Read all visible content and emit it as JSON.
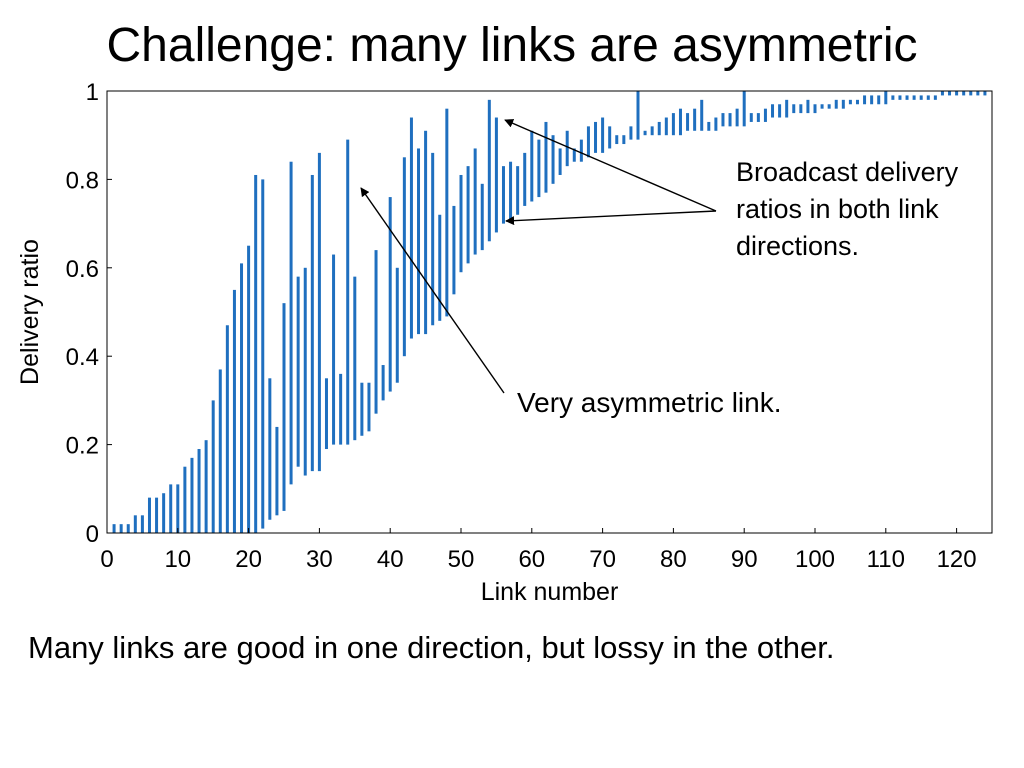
{
  "slide": {
    "title": "Challenge: many links are asymmetric",
    "caption": "Many links are good in one direction, but lossy in the other."
  },
  "chart_data": {
    "type": "bar",
    "subtype": "range-bar",
    "xlabel": "Link number",
    "ylabel": "Delivery ratio",
    "xlim": [
      0,
      125
    ],
    "ylim": [
      0,
      1
    ],
    "xticks": [
      0,
      10,
      20,
      30,
      40,
      50,
      60,
      70,
      80,
      90,
      100,
      110,
      120
    ],
    "yticks": [
      0,
      0.2,
      0.4,
      0.6,
      0.8,
      1
    ],
    "ytick_labels": [
      "0",
      "0.2",
      "0.4",
      "0.6",
      "0.8",
      "1"
    ],
    "grid": false,
    "bar_color": "#1f6fbf",
    "links": [
      1,
      2,
      3,
      4,
      5,
      6,
      7,
      8,
      9,
      10,
      11,
      12,
      13,
      14,
      15,
      16,
      17,
      18,
      19,
      20,
      21,
      22,
      23,
      24,
      25,
      26,
      27,
      28,
      29,
      30,
      31,
      32,
      33,
      34,
      35,
      36,
      37,
      38,
      39,
      40,
      41,
      42,
      43,
      44,
      45,
      46,
      47,
      48,
      49,
      50,
      51,
      52,
      53,
      54,
      55,
      56,
      57,
      58,
      59,
      60,
      61,
      62,
      63,
      64,
      65,
      66,
      67,
      68,
      69,
      70,
      71,
      72,
      73,
      74,
      75,
      76,
      77,
      78,
      79,
      80,
      81,
      82,
      83,
      84,
      85,
      86,
      87,
      88,
      89,
      90,
      91,
      92,
      93,
      94,
      95,
      96,
      97,
      98,
      99,
      100,
      101,
      102,
      103,
      104,
      105,
      106,
      107,
      108,
      109,
      110,
      111,
      112,
      113,
      114,
      115,
      116,
      117,
      118,
      119,
      120,
      121,
      122,
      123,
      124
    ],
    "low": [
      0,
      0,
      0,
      0,
      0,
      0,
      0,
      0,
      0,
      0,
      0,
      0,
      0,
      0,
      0,
      0,
      0,
      0,
      0,
      0,
      0,
      0.01,
      0.03,
      0.04,
      0.05,
      0.11,
      0.15,
      0.13,
      0.14,
      0.14,
      0.19,
      0.2,
      0.2,
      0.2,
      0.21,
      0.22,
      0.23,
      0.27,
      0.3,
      0.32,
      0.34,
      0.4,
      0.44,
      0.45,
      0.45,
      0.47,
      0.48,
      0.49,
      0.54,
      0.59,
      0.61,
      0.63,
      0.64,
      0.66,
      0.68,
      0.7,
      0.71,
      0.72,
      0.74,
      0.75,
      0.76,
      0.77,
      0.79,
      0.81,
      0.83,
      0.84,
      0.84,
      0.85,
      0.86,
      0.86,
      0.87,
      0.88,
      0.88,
      0.89,
      0.89,
      0.9,
      0.9,
      0.9,
      0.9,
      0.9,
      0.9,
      0.91,
      0.91,
      0.91,
      0.91,
      0.91,
      0.92,
      0.92,
      0.92,
      0.92,
      0.93,
      0.93,
      0.93,
      0.94,
      0.94,
      0.94,
      0.95,
      0.95,
      0.95,
      0.95,
      0.96,
      0.96,
      0.96,
      0.96,
      0.97,
      0.97,
      0.97,
      0.97,
      0.97,
      0.97,
      0.98,
      0.98,
      0.98,
      0.98,
      0.98,
      0.98,
      0.98,
      0.99,
      0.99,
      0.99,
      0.99,
      0.99,
      0.99,
      0.99
    ],
    "high": [
      0.02,
      0.02,
      0.02,
      0.04,
      0.04,
      0.08,
      0.08,
      0.09,
      0.11,
      0.11,
      0.15,
      0.17,
      0.19,
      0.21,
      0.3,
      0.37,
      0.47,
      0.55,
      0.61,
      0.65,
      0.81,
      0.8,
      0.35,
      0.24,
      0.52,
      0.84,
      0.58,
      0.6,
      0.81,
      0.86,
      0.35,
      0.63,
      0.36,
      0.89,
      0.58,
      0.34,
      0.34,
      0.64,
      0.38,
      0.76,
      0.6,
      0.85,
      0.94,
      0.87,
      0.91,
      0.86,
      0.72,
      0.96,
      0.74,
      0.81,
      0.83,
      0.87,
      0.79,
      0.98,
      0.94,
      0.83,
      0.84,
      0.83,
      0.86,
      0.91,
      0.89,
      0.93,
      0.9,
      0.87,
      0.91,
      0.87,
      0.89,
      0.92,
      0.93,
      0.94,
      0.92,
      0.9,
      0.9,
      0.92,
      1.0,
      0.91,
      0.92,
      0.93,
      0.94,
      0.95,
      0.96,
      0.95,
      0.96,
      0.98,
      0.93,
      0.94,
      0.95,
      0.95,
      0.96,
      1.0,
      0.95,
      0.95,
      0.96,
      0.97,
      0.97,
      0.98,
      0.97,
      0.97,
      0.98,
      0.97,
      0.97,
      0.97,
      0.98,
      0.98,
      0.98,
      0.98,
      0.99,
      0.99,
      0.99,
      1.0,
      0.99,
      0.99,
      0.99,
      0.99,
      0.99,
      0.99,
      0.99,
      1.0,
      1.0,
      1.0,
      1.0,
      1.0,
      1.0,
      1.0
    ]
  },
  "annotations": {
    "asymmetric_label": "Very asymmetric link.",
    "broadcast_lines": [
      "Broadcast delivery",
      "ratios in both link",
      "directions."
    ]
  }
}
